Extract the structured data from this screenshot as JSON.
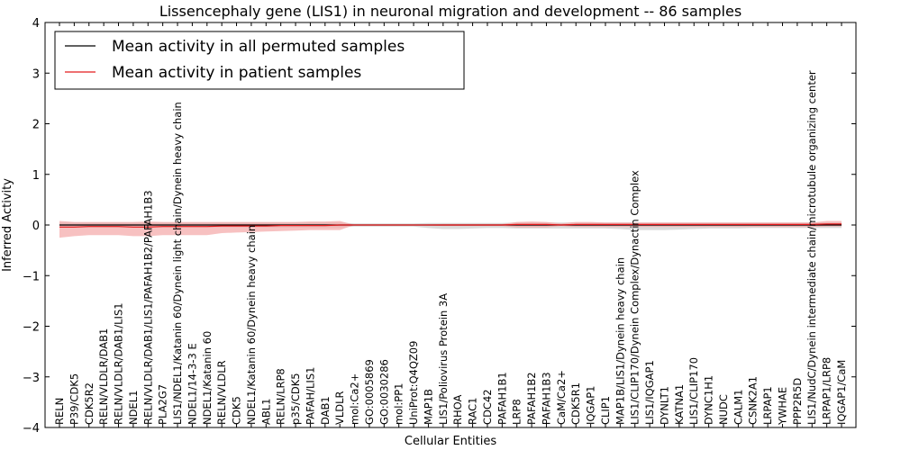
{
  "chart_data": {
    "type": "line",
    "title": "Lissencephaly gene (LIS1) in neuronal migration and development -- 86 samples",
    "xlabel": "Cellular Entities",
    "ylabel": "Inferred Activity",
    "ylim": [
      -4,
      4
    ],
    "yticks": [
      "−4",
      "−3",
      "−2",
      "−1",
      "0",
      "1",
      "2",
      "3",
      "4"
    ],
    "grid": false,
    "legend_position": "top-left",
    "categories": [
      "RELN",
      "P39/CDK5",
      "CDK5R2",
      "RELN/VLDLR/DAB1",
      "RELN/VLDLR/DAB1/LIS1",
      "NDEL1",
      "RELN/VLDLR/DAB1/LIS1/PAFAH1B2/PAFAH1B3",
      "PLA2G7",
      "LIS1/NDEL1/Katanin 60/Dynein light chain/Dynein heavy chain",
      "NDEL1/14-3-3 E",
      "NDEL1/Katanin 60",
      "RELN/VLDLR",
      "CDK5",
      "NDEL1/Katanin 60/Dynein heavy chain",
      "ABL1",
      "RELN/LRP8",
      "p35/CDK5",
      "PAFAH/LIS1",
      "DAB1",
      "VLDLR",
      "mol:Ca2+",
      "GO:0005869",
      "GO:0030286",
      "mol:PP1",
      "UniProt:Q4QZ09",
      "MAP1B",
      "LIS1/Poliovirus Protein 3A",
      "RHOA",
      "RAC1",
      "CDC42",
      "PAFAH1B1",
      "LRP8",
      "PAFAH1B2",
      "PAFAH1B3",
      "CaM/Ca2+",
      "CDK5R1",
      "IQGAP1",
      "CLIP1",
      "MAP1B/LIS1/Dynein heavy chain",
      "LIS1/CLIP170/Dynein Complex/Dynactin Complex",
      "LIS1/IQGAP1",
      "DYNLT1",
      "KATNA1",
      "LIS1/CLIP170",
      "DYNC1H1",
      "NUDC",
      "CALM1",
      "CSNK2A1",
      "LRPAP1",
      "YWHAE",
      "PPP2R5D",
      "LIS1/NudC/Dynein intermediate chain/microtubule organizing center",
      "LRPAP1/LRP8",
      "IQGAP1/CaM"
    ],
    "series": [
      {
        "name": "Mean activity in all permuted samples",
        "color": "#000000",
        "band_color": "#bdbdbd",
        "values": [
          0.0,
          0.0,
          0.0,
          0.0,
          0.0,
          0.0,
          0.0,
          0.0,
          0.0,
          0.0,
          0.0,
          0.0,
          0.0,
          0.0,
          0.0,
          0.0,
          0.0,
          0.0,
          0.0,
          0.0,
          0.0,
          0.0,
          0.0,
          0.0,
          0.0,
          0.0,
          0.0,
          0.0,
          0.0,
          0.0,
          0.0,
          0.0,
          0.0,
          0.0,
          0.0,
          0.0,
          0.0,
          0.0,
          0.0,
          0.0,
          0.0,
          0.0,
          0.0,
          0.0,
          0.0,
          0.0,
          0.0,
          0.0,
          0.0,
          0.0,
          0.0,
          0.0,
          0.0,
          0.0
        ],
        "band_upper": [
          0.05,
          0.05,
          0.05,
          0.05,
          0.05,
          0.05,
          0.05,
          0.05,
          0.05,
          0.05,
          0.05,
          0.05,
          0.05,
          0.05,
          0.05,
          0.05,
          0.05,
          0.05,
          0.05,
          0.05,
          0.03,
          0.03,
          0.03,
          0.03,
          0.03,
          0.04,
          0.04,
          0.04,
          0.04,
          0.04,
          0.04,
          0.05,
          0.05,
          0.05,
          0.05,
          0.05,
          0.05,
          0.05,
          0.05,
          0.05,
          0.05,
          0.05,
          0.05,
          0.05,
          0.05,
          0.05,
          0.05,
          0.05,
          0.05,
          0.05,
          0.05,
          0.05,
          0.05,
          0.05
        ],
        "band_lower": [
          -0.05,
          -0.05,
          -0.05,
          -0.05,
          -0.05,
          -0.05,
          -0.05,
          -0.05,
          -0.05,
          -0.05,
          -0.05,
          -0.05,
          -0.05,
          -0.05,
          -0.05,
          -0.05,
          -0.05,
          -0.05,
          -0.05,
          -0.05,
          -0.03,
          -0.03,
          -0.03,
          -0.03,
          -0.03,
          -0.06,
          -0.08,
          -0.08,
          -0.07,
          -0.06,
          -0.06,
          -0.07,
          -0.07,
          -0.07,
          -0.07,
          -0.07,
          -0.07,
          -0.07,
          -0.08,
          -0.1,
          -0.1,
          -0.1,
          -0.09,
          -0.08,
          -0.07,
          -0.07,
          -0.07,
          -0.06,
          -0.06,
          -0.06,
          -0.06,
          -0.06,
          -0.06,
          -0.06
        ]
      },
      {
        "name": "Mean activity in patient samples",
        "color": "#e41a1c",
        "band_color": "#f4a6a6",
        "values": [
          -0.04,
          -0.04,
          -0.03,
          -0.03,
          -0.03,
          -0.04,
          -0.04,
          -0.03,
          -0.03,
          -0.03,
          -0.03,
          -0.02,
          -0.02,
          -0.02,
          -0.02,
          -0.01,
          -0.01,
          -0.01,
          -0.01,
          0.0,
          0.0,
          0.0,
          0.0,
          0.0,
          0.0,
          0.0,
          0.0,
          0.0,
          0.0,
          0.0,
          0.0,
          0.01,
          0.01,
          0.01,
          0.0,
          0.01,
          0.01,
          0.01,
          0.01,
          0.01,
          0.01,
          0.01,
          0.01,
          0.01,
          0.01,
          0.01,
          0.01,
          0.01,
          0.01,
          0.01,
          0.01,
          0.01,
          0.02,
          0.02
        ],
        "band_upper": [
          0.08,
          0.06,
          0.06,
          0.06,
          0.06,
          0.06,
          0.07,
          0.06,
          0.06,
          0.06,
          0.06,
          0.06,
          0.06,
          0.06,
          0.06,
          0.06,
          0.06,
          0.07,
          0.07,
          0.08,
          0.0,
          0.0,
          0.0,
          0.0,
          0.0,
          0.01,
          0.02,
          0.02,
          0.02,
          0.02,
          0.02,
          0.06,
          0.07,
          0.06,
          0.03,
          0.06,
          0.06,
          0.05,
          0.05,
          0.05,
          0.05,
          0.05,
          0.05,
          0.05,
          0.05,
          0.05,
          0.05,
          0.05,
          0.05,
          0.05,
          0.05,
          0.05,
          0.08,
          0.08
        ],
        "band_lower": [
          -0.25,
          -0.22,
          -0.2,
          -0.2,
          -0.2,
          -0.22,
          -0.22,
          -0.2,
          -0.2,
          -0.2,
          -0.2,
          -0.16,
          -0.15,
          -0.14,
          -0.13,
          -0.12,
          -0.11,
          -0.1,
          -0.1,
          -0.1,
          0.0,
          0.0,
          0.0,
          0.0,
          0.0,
          -0.01,
          -0.02,
          -0.02,
          -0.02,
          -0.02,
          -0.02,
          -0.05,
          -0.05,
          -0.05,
          -0.02,
          -0.04,
          -0.04,
          -0.04,
          -0.04,
          -0.04,
          -0.04,
          -0.04,
          -0.04,
          -0.04,
          -0.04,
          -0.04,
          -0.04,
          -0.04,
          -0.04,
          -0.04,
          -0.04,
          -0.04,
          -0.03,
          -0.03
        ]
      }
    ]
  }
}
